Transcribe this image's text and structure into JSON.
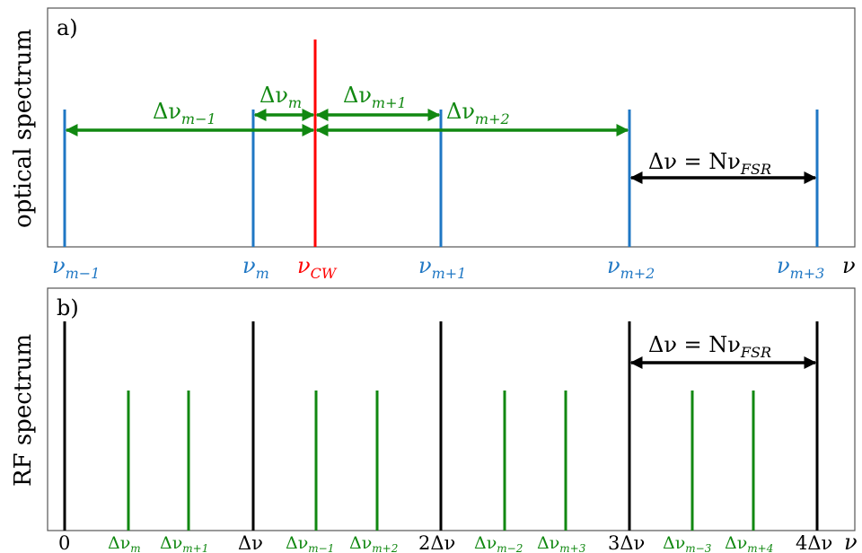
{
  "panel_a": {
    "label": "a)",
    "ylabel": "optical spectrum",
    "axis_end_label": "ν",
    "mode_labels": [
      {
        "base": "ν",
        "sub": "m−1"
      },
      {
        "base": "ν",
        "sub": "m"
      },
      {
        "base": "ν",
        "sub": "m+1"
      },
      {
        "base": "ν",
        "sub": "m+2"
      },
      {
        "base": "ν",
        "sub": "m+3"
      }
    ],
    "cw_label": {
      "base": "ν",
      "sub": "CW"
    },
    "green_annotations": [
      {
        "base": "Δν",
        "sub": "m−1"
      },
      {
        "base": "Δν",
        "sub": "m"
      },
      {
        "base": "Δν",
        "sub": "m+1"
      },
      {
        "base": "Δν",
        "sub": "m+2"
      }
    ],
    "spacing_label": {
      "text": "Δν = Nν",
      "sub": "FSR"
    }
  },
  "panel_b": {
    "label": "b)",
    "ylabel": "RF spectrum",
    "axis_end_label": "ν",
    "black_labels": [
      "0",
      "Δν",
      "2Δν",
      "3Δν",
      "4Δν"
    ],
    "green_labels": [
      {
        "base": "Δν",
        "sub": "m"
      },
      {
        "base": "Δν",
        "sub": "m+1"
      },
      {
        "base": "Δν",
        "sub": "m−1"
      },
      {
        "base": "Δν",
        "sub": "m+2"
      },
      {
        "base": "Δν",
        "sub": "m−2"
      },
      {
        "base": "Δν",
        "sub": "m+3"
      },
      {
        "base": "Δν",
        "sub": "m−3"
      },
      {
        "base": "Δν",
        "sub": "m+4"
      }
    ],
    "spacing_label": {
      "text": "Δν = Nν",
      "sub": "FSR"
    }
  },
  "colors": {
    "blue": "#1f77c4",
    "red": "#ff0000",
    "green": "#118811",
    "black": "#000000",
    "frame": "#555555"
  }
}
